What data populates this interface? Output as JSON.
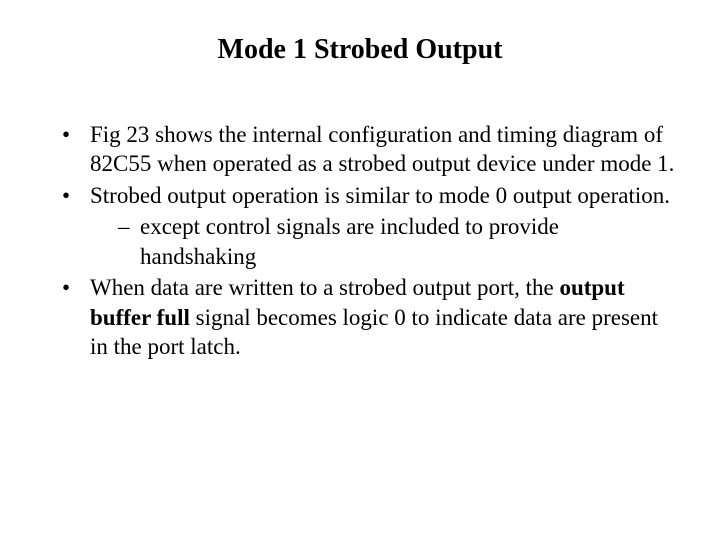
{
  "title": "Mode 1 Strobed Output",
  "bullets": {
    "b1": "Fig 23 shows the internal configuration and timing diagram of 82C55 when operated as a strobed output device under mode 1.",
    "b2": "Strobed output operation is similar to mode 0 output operation.",
    "b2_sub1": "except control signals are included to provide handshaking",
    "b3_pre": "When data are written to a strobed output port, the ",
    "b3_bold": "output buffer full",
    "b3_post": " signal becomes logic 0 to indicate data are present in the port latch."
  },
  "colors": {
    "background": "#ffffff",
    "text": "#000000"
  },
  "typography": {
    "font_family": "Times New Roman",
    "title_fontsize_pt": 21,
    "body_fontsize_pt": 17,
    "title_weight": "bold"
  }
}
